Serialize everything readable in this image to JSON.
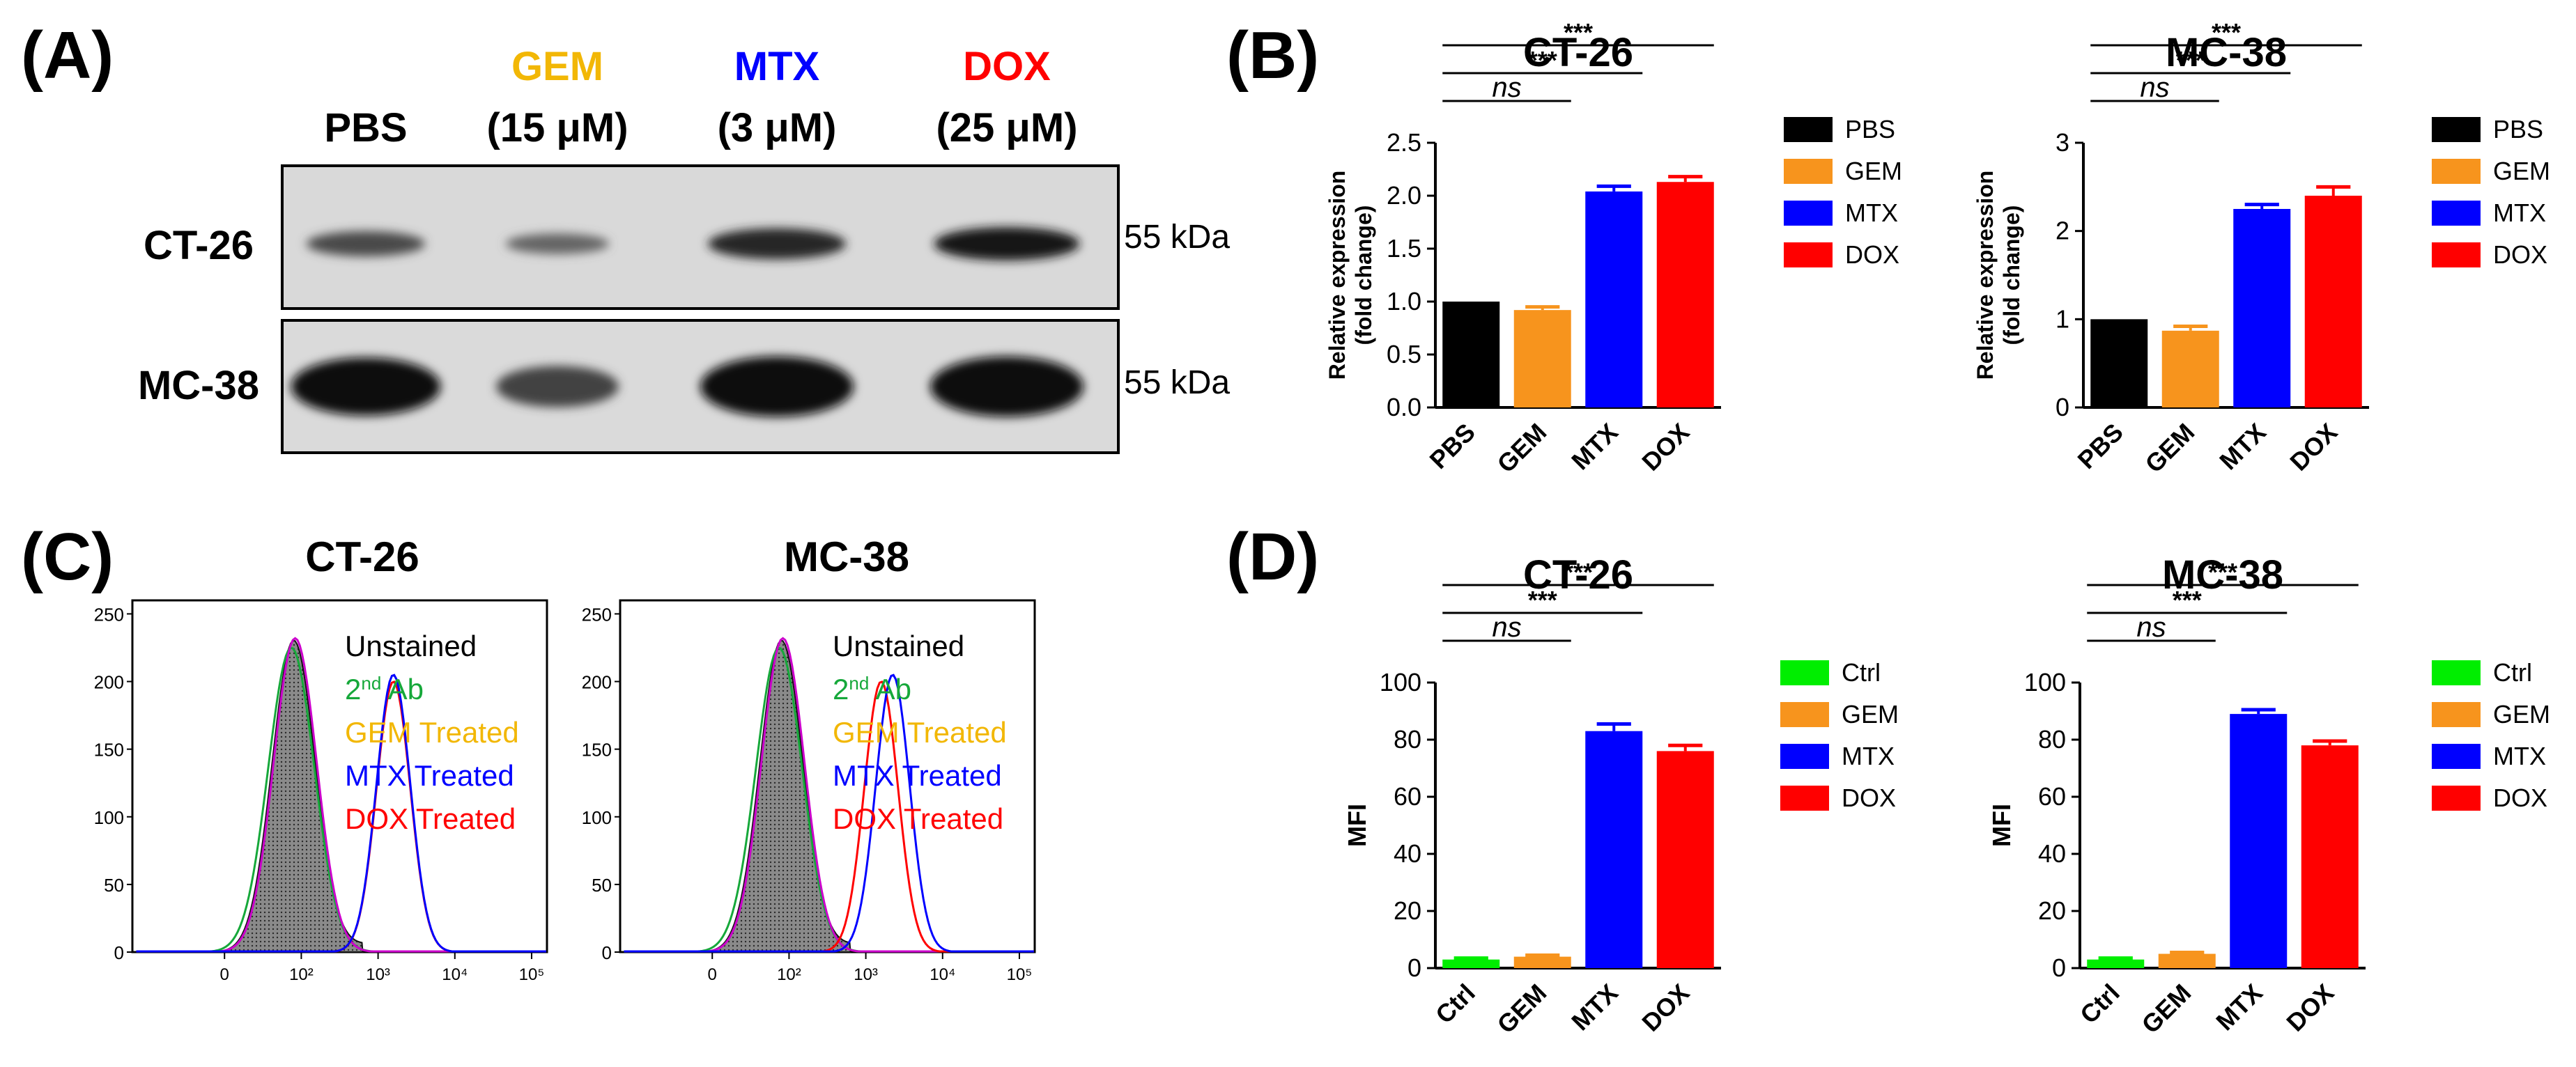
{
  "panels": {
    "A": {
      "label": "(A)"
    },
    "B": {
      "label": "(B)"
    },
    "C": {
      "label": "(C)"
    },
    "D": {
      "label": "(D)"
    }
  },
  "western_blot": {
    "lanes": [
      {
        "name": "PBS",
        "dose": ""
      },
      {
        "name": "GEM",
        "dose": "(15 μM)"
      },
      {
        "name": "MTX",
        "dose": "(3 μM)"
      },
      {
        "name": "DOX",
        "dose": "(25 μM)"
      }
    ],
    "rows": [
      {
        "cell_line": "CT-26",
        "marker": "55 kDa",
        "band_intensity": [
          0.55,
          0.35,
          0.8,
          0.9
        ]
      },
      {
        "cell_line": "MC-38",
        "marker": "55 kDa",
        "band_intensity": [
          0.95,
          0.6,
          1.0,
          1.0
        ]
      }
    ]
  },
  "colors": {
    "PBS": "#000000",
    "GEM": "#f7941d",
    "GEM_label": "#f2b705",
    "MTX": "#0000ff",
    "DOX": "#ff0000",
    "Ctrl": "#00ee00",
    "secondary_ab": "#16a83a",
    "marker": "#cc00cc"
  },
  "flow_cytometry": {
    "y_ticks": [
      "0",
      "50",
      "100",
      "150",
      "200",
      "250"
    ],
    "x_ticks": [
      "0",
      "10²",
      "10³",
      "10⁴",
      "10⁵"
    ],
    "legend": [
      {
        "label": "Unstained",
        "color": "#000000",
        "sup": ""
      },
      {
        "label": "2",
        "sup": "nd",
        "after": " Ab",
        "color": "#16a83a"
      },
      {
        "label": "GEM Treated",
        "color": "#f2b705",
        "sup": ""
      },
      {
        "label": "MTX Treated",
        "color": "#0000ff",
        "sup": ""
      },
      {
        "label": "DOX Treated",
        "color": "#ff0000",
        "sup": ""
      }
    ],
    "plots": [
      {
        "title": "CT-26",
        "unstained_peak": 1.5,
        "shifted_peaks": {
          "MTX": 2.8,
          "DOX": 2.8
        }
      },
      {
        "title": "MC-38",
        "unstained_peak": 1.5,
        "shifted_peaks": {
          "MTX": 2.95,
          "DOX": 2.8
        }
      }
    ]
  },
  "chart_data": [
    {
      "panel": "B",
      "type": "bar",
      "title": "CT-26",
      "categories": [
        "PBS",
        "GEM",
        "MTX",
        "DOX"
      ],
      "values": [
        1.0,
        0.92,
        2.04,
        2.13
      ],
      "errors": [
        0.0,
        0.03,
        0.05,
        0.05
      ],
      "ylabel": [
        "Relative expression",
        "(fold change)"
      ],
      "ylim": [
        0,
        2.5
      ],
      "yticks": [
        "0.0",
        "0.5",
        "1.0",
        "1.5",
        "2.0",
        "2.5"
      ],
      "legend": [
        "PBS",
        "GEM",
        "MTX",
        "DOX"
      ],
      "significance": [
        {
          "from": "PBS",
          "to": "GEM",
          "label": "ns"
        },
        {
          "from": "PBS",
          "to": "MTX",
          "label": "***"
        },
        {
          "from": "PBS",
          "to": "DOX",
          "label": "***"
        }
      ]
    },
    {
      "panel": "B",
      "type": "bar",
      "title": "MC-38",
      "categories": [
        "PBS",
        "GEM",
        "MTX",
        "DOX"
      ],
      "values": [
        1.0,
        0.87,
        2.25,
        2.4
      ],
      "errors": [
        0.0,
        0.05,
        0.05,
        0.1
      ],
      "ylabel": [
        "Relative expression",
        "(fold change)"
      ],
      "ylim": [
        0,
        3
      ],
      "yticks": [
        "0",
        "1",
        "2",
        "3"
      ],
      "legend": [
        "PBS",
        "GEM",
        "MTX",
        "DOX"
      ],
      "significance": [
        {
          "from": "PBS",
          "to": "GEM",
          "label": "ns"
        },
        {
          "from": "PBS",
          "to": "MTX",
          "label": "***"
        },
        {
          "from": "PBS",
          "to": "DOX",
          "label": "***"
        }
      ]
    },
    {
      "panel": "D",
      "type": "bar",
      "title": "CT-26",
      "categories": [
        "Ctrl",
        "GEM",
        "MTX",
        "DOX"
      ],
      "values": [
        3,
        4,
        83,
        76
      ],
      "errors": [
        0.5,
        0.5,
        2.5,
        2.0
      ],
      "ylabel": [
        "MFI"
      ],
      "ylim": [
        0,
        100
      ],
      "yticks": [
        "0",
        "20",
        "40",
        "60",
        "80",
        "100"
      ],
      "legend": [
        "Ctrl",
        "GEM",
        "MTX",
        "DOX"
      ],
      "significance": [
        {
          "from": "Ctrl",
          "to": "GEM",
          "label": "ns"
        },
        {
          "from": "Ctrl",
          "to": "MTX",
          "label": "***"
        },
        {
          "from": "Ctrl",
          "to": "DOX",
          "label": "***"
        }
      ]
    },
    {
      "panel": "D",
      "type": "bar",
      "title": "MC-38",
      "categories": [
        "Ctrl",
        "GEM",
        "MTX",
        "DOX"
      ],
      "values": [
        3,
        5,
        89,
        78
      ],
      "errors": [
        0.5,
        0.5,
        1.5,
        1.5
      ],
      "ylabel": [
        "MFI"
      ],
      "ylim": [
        0,
        100
      ],
      "yticks": [
        "0",
        "20",
        "40",
        "60",
        "80",
        "100"
      ],
      "legend": [
        "Ctrl",
        "GEM",
        "MTX",
        "DOX"
      ],
      "significance": [
        {
          "from": "Ctrl",
          "to": "GEM",
          "label": "ns"
        },
        {
          "from": "Ctrl",
          "to": "MTX",
          "label": "***"
        },
        {
          "from": "Ctrl",
          "to": "DOX",
          "label": "***"
        }
      ]
    }
  ]
}
